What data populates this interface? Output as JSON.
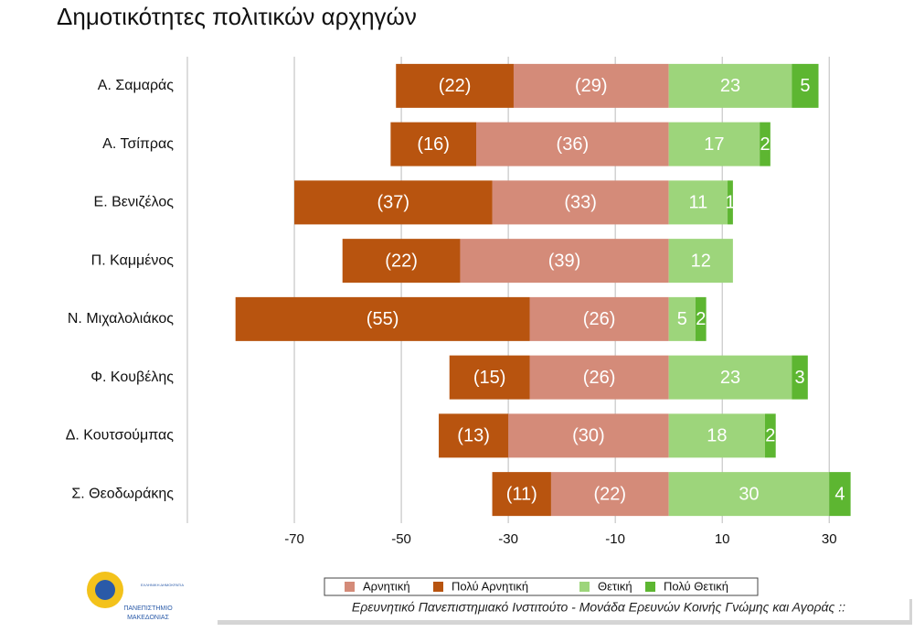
{
  "chart_data": {
    "type": "diverging_bar",
    "title": "Δημοτικότητες πολιτικών αρχηγών",
    "categories": [
      "Α. Σαμαράς",
      "Α. Τσίπρας",
      "Ε. Βενιζέλος",
      "Π. Καμμένος",
      "Ν. Μιχαλολιάκος",
      "Φ. Κουβέλης",
      "Δ. Κουτσούμπας",
      "Σ. Θεοδωράκης"
    ],
    "series": [
      {
        "name": "Αρνητική",
        "color": "#d48b79",
        "values": [
          -29,
          -36,
          -33,
          -39,
          -26,
          -26,
          -30,
          -22
        ],
        "value_labels": [
          "(29)",
          "(36)",
          "(33)",
          "(39)",
          "(26)",
          "(26)",
          "(30)",
          "(22)"
        ]
      },
      {
        "name": "Πολύ Αρνητική",
        "color": "#b8540f",
        "values": [
          -22,
          -16,
          -37,
          -22,
          -55,
          -15,
          -13,
          -11
        ],
        "value_labels": [
          "(22)",
          "(16)",
          "(37)",
          "(22)",
          "(55)",
          "(15)",
          "(13)",
          "(11)"
        ]
      },
      {
        "name": "Θετική",
        "color": "#9dd57b",
        "values": [
          23,
          17,
          11,
          12,
          5,
          23,
          18,
          30
        ]
      },
      {
        "name": "Πολύ Θετική",
        "color": "#5db631",
        "values": [
          5,
          2,
          1,
          null,
          2,
          3,
          2,
          4
        ]
      }
    ],
    "xlim": [
      -90,
      45
    ],
    "xticks": [
      -70,
      -50,
      -30,
      -10,
      10,
      30
    ],
    "grid": true,
    "legend": "bottom"
  },
  "footer": {
    "text": "Ερευνητικό Πανεπιστημιακό Ινστιτούτο - Μονάδα Ερευνών Κοινής Γνώμης και Αγοράς ::",
    "logo_top": "ΕΛΛΗΝΙΚΗ ΔΗΜΟΚΡΑΤΙΑ",
    "logo_name": "ΠΑΝΕΠΙΣΤΗΜΙΟ",
    "logo_sub": "ΜΑΚΕΔΟΝΙΑΣ"
  }
}
